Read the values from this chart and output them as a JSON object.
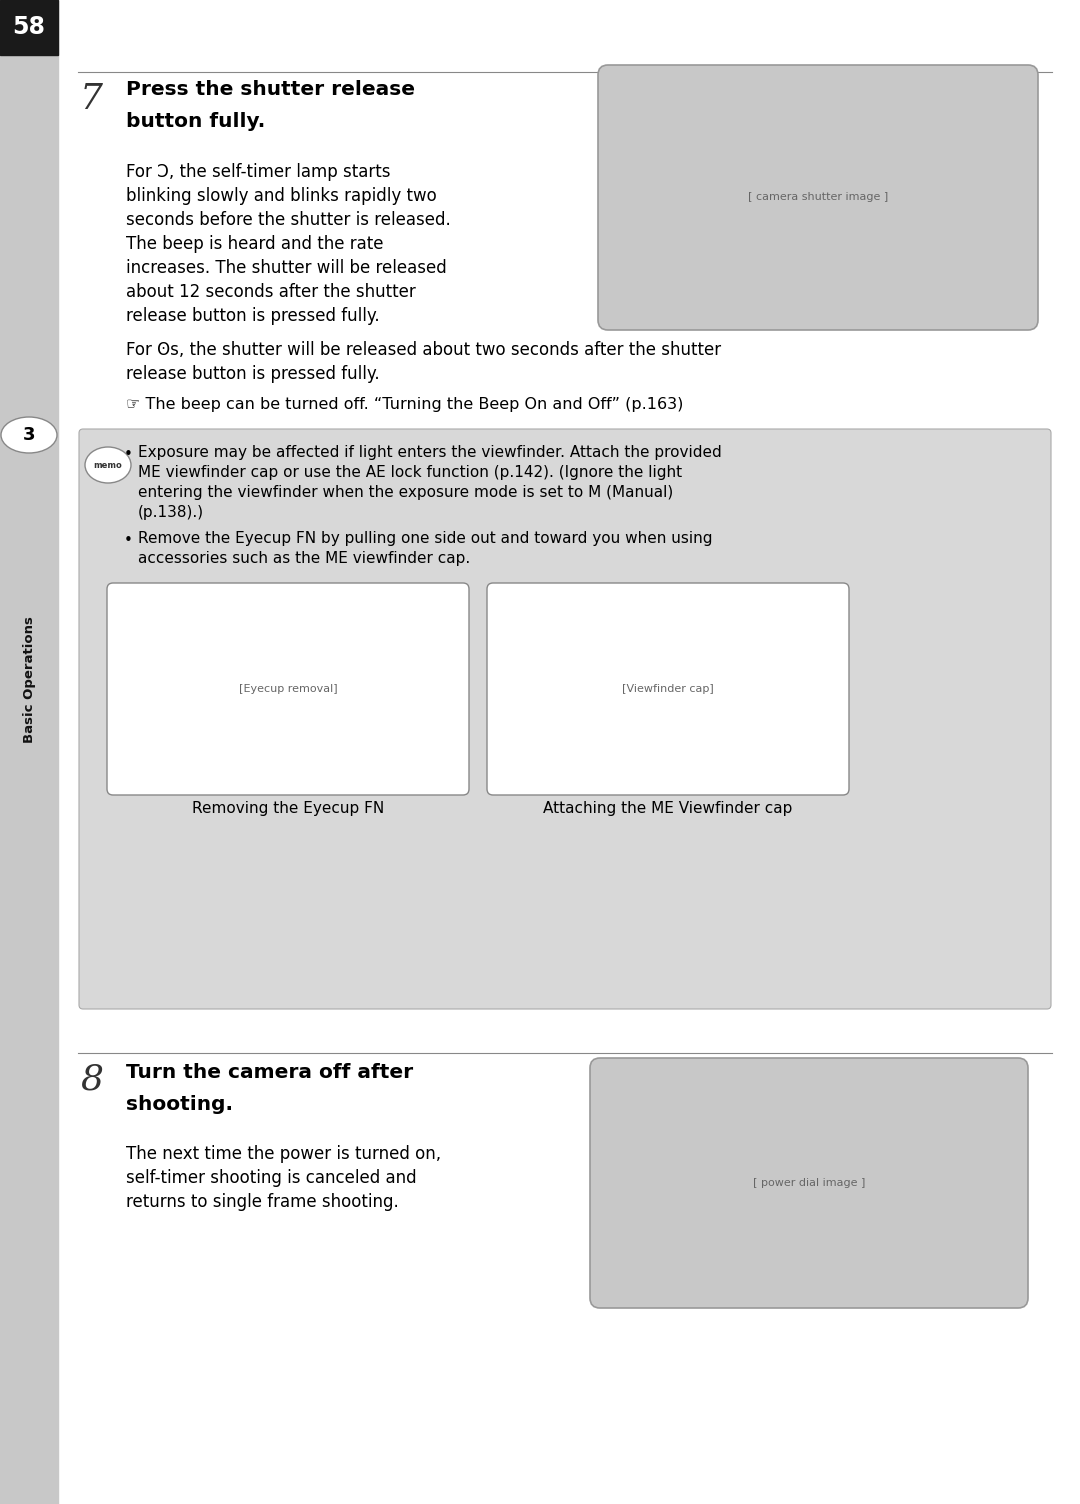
{
  "page_number": "58",
  "bg_color": "#ffffff",
  "sidebar_color": "#c8c8c8",
  "section7_number": "7",
  "section7_heading_line1": "Press the shutter release",
  "section7_heading_line2": "button fully.",
  "section7_body1": "For Ɔ, the self-timer lamp starts\nblinking slowly and blinks rapidly two\nseconds before the shutter is released.\nThe beep is heard and the rate\nincreases. The shutter will be released\nabout 12 seconds after the shutter\nrelease button is pressed fully.",
  "section7_body2_line1": "For ʘs, the shutter will be released about two seconds after the shutter",
  "section7_body2_line2": "release button is pressed fully.",
  "section7_note": "☞ The beep can be turned off. “Turning the Beep On and Off” (p.163)",
  "memo_bullet1_line1": "Exposure may be affected if light enters the viewfinder. Attach the provided",
  "memo_bullet1_line2": "ME viewfinder cap or use the AE lock function (p.142). (Ignore the light",
  "memo_bullet1_line3": "entering the viewfinder when the exposure mode is set to M (Manual)",
  "memo_bullet1_line4": "(p.138).)",
  "memo_bullet2_line1": "Remove the Eyecup FN by pulling one side out and toward you when using",
  "memo_bullet2_line2": "accessories such as the ME viewfinder cap.",
  "caption_left": "Removing the Eyecup FN",
  "caption_right": "Attaching the ME Viewfinder cap",
  "section8_number": "8",
  "section8_heading_line1": "Turn the camera off after",
  "section8_heading_line2": "shooting.",
  "section8_body_line1": "The next time the power is turned on,",
  "section8_body_line2": "self-timer shooting is canceled and",
  "section8_body_line3": "returns to single frame shooting.",
  "img_bg": "#c8c8c8",
  "memo_bg": "#d8d8d8",
  "text_color": "#000000",
  "sidebar_text": "Basic Operations",
  "sidebar_num": "3",
  "divider_color": "#aaaaaa",
  "black": "#000000",
  "white": "#ffffff",
  "dark_gray": "#1a1a1a"
}
